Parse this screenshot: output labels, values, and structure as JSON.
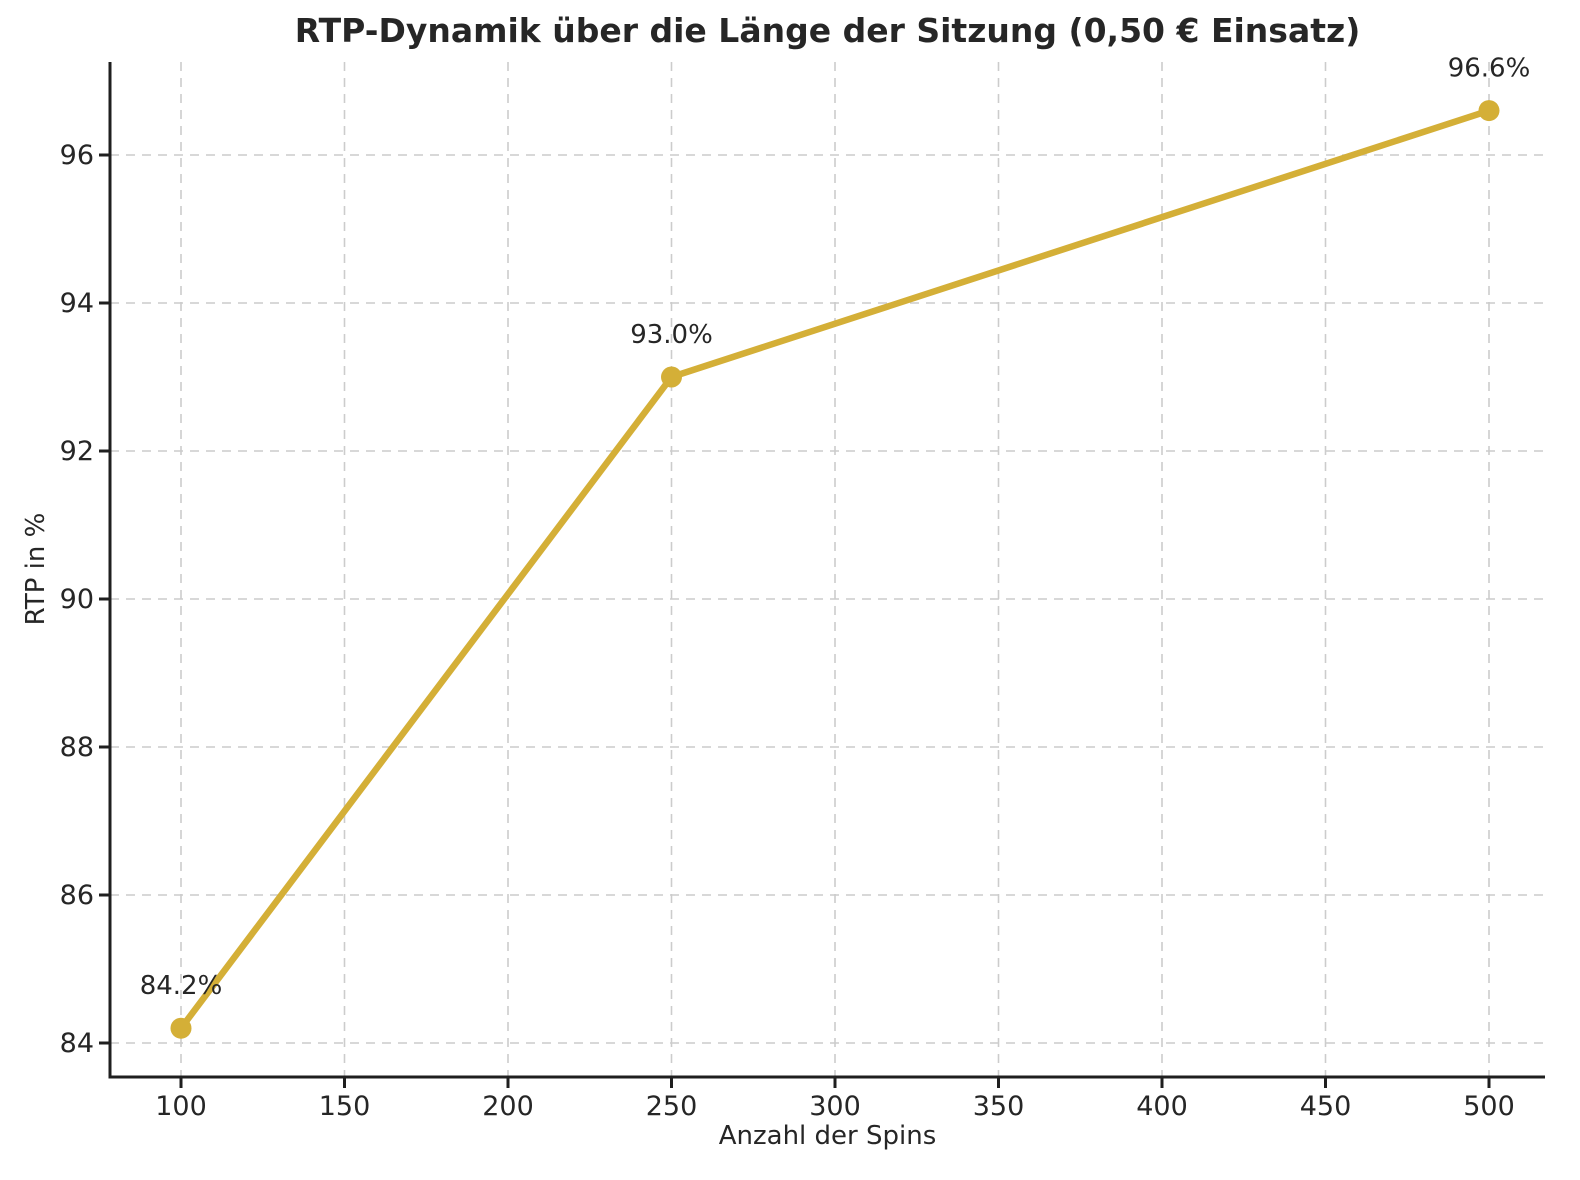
{
  "chart_data": {
    "type": "line",
    "title": "RTP-Dynamik über die Länge der Sitzung (0,50 € Einsatz)",
    "xlabel": "Anzahl der Spins",
    "ylabel": "RTP in %",
    "x": [
      100,
      250,
      500
    ],
    "y": [
      84.2,
      93.0,
      96.6
    ],
    "point_labels": [
      "84.2%",
      "93.0%",
      "96.6%"
    ],
    "x_ticks": [
      100,
      150,
      200,
      250,
      300,
      350,
      400,
      450,
      500
    ],
    "y_ticks": [
      84,
      86,
      88,
      90,
      92,
      94,
      96
    ],
    "xlim": [
      78,
      517
    ],
    "ylim": [
      83.55,
      97.25
    ],
    "grid": true,
    "grid_style": "dashed",
    "legend_position": "none",
    "colors": {
      "line": "#d4af37",
      "marker": "#d4af37",
      "grid": "#cccccc",
      "axis": "#1f1f1f",
      "text": "#262626"
    }
  }
}
